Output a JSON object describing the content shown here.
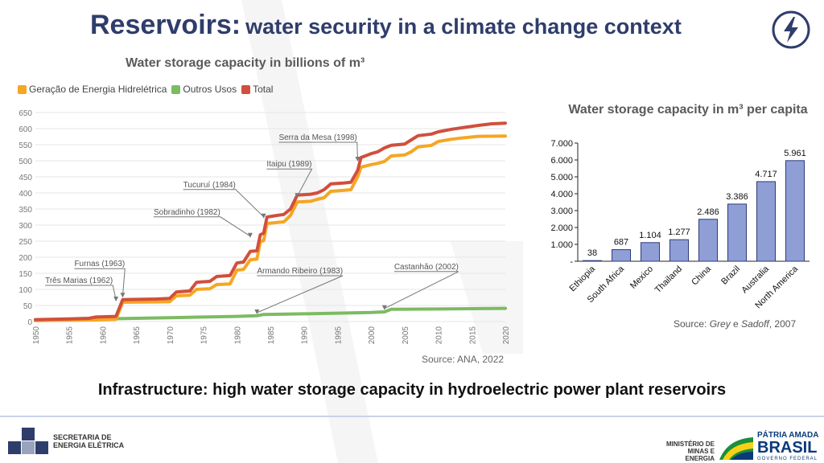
{
  "header": {
    "title_main": "Reservoirs:",
    "title_rest": "water security in a climate change context",
    "subtitle": "Water storage capacity in billions of m³",
    "icon": "lightning-bolt-icon"
  },
  "line_chart": {
    "legend": [
      {
        "label": "Geração de Energia Hidrelétrica",
        "color": "#f5a623"
      },
      {
        "label": "Outros Usos",
        "color": "#7dbb63"
      },
      {
        "label": "Total",
        "color": "#d14f3c"
      }
    ],
    "source": "Source: ANA, 2022"
  },
  "bar_chart": {
    "title": "Water storage capacity in m³ per capita",
    "source_prefix": "Source: ",
    "source_author1": "Grey",
    "source_sep": " e ",
    "source_author2": "Sadoff",
    "source_year": ", 2007"
  },
  "footer": {
    "caption": "Infrastructure: high water storage capacity in hydroelectric power plant reservoirs",
    "logo_left_line1": "SECRETARIA DE",
    "logo_left_line2": "ENERGIA ELÉTRICA",
    "mme_line1": "MINISTÉRIO DE",
    "mme_line2": "MINAS E ENERGIA",
    "brasil_line1": "PÁTRIA AMADA",
    "brasil_line2": "BRASIL",
    "brasil_line3": "GOVERNO FEDERAL"
  },
  "chart_data": [
    {
      "type": "line",
      "title": "Water storage capacity in billions of m³",
      "xlabel": "",
      "ylabel": "",
      "xlim": [
        1950,
        2020
      ],
      "ylim": [
        0,
        650
      ],
      "x_ticks": [
        1950,
        1955,
        1960,
        1965,
        1970,
        1975,
        1980,
        1985,
        1990,
        1995,
        2000,
        2005,
        2010,
        2015,
        2020
      ],
      "y_ticks": [
        0,
        50,
        100,
        150,
        200,
        250,
        300,
        350,
        400,
        450,
        500,
        550,
        600,
        650
      ],
      "grid": "horizontal",
      "legend_position": "top-left",
      "series": [
        {
          "name": "Geração de Energia Hidrelétrica",
          "color": "#f5a623",
          "points": [
            [
              1950,
              3
            ],
            [
              1955,
              4
            ],
            [
              1959,
              5
            ],
            [
              1962,
              7
            ],
            [
              1963,
              60
            ],
            [
              1968,
              61
            ],
            [
              1970,
              62
            ],
            [
              1971,
              80
            ],
            [
              1973,
              82
            ],
            [
              1974,
              100
            ],
            [
              1976,
              102
            ],
            [
              1977,
              115
            ],
            [
              1979,
              117
            ],
            [
              1980,
              160
            ],
            [
              1981,
              162
            ],
            [
              1982,
              192
            ],
            [
              1983,
              194
            ],
            [
              1983.5,
              248
            ],
            [
              1984,
              252
            ],
            [
              1984.5,
              305
            ],
            [
              1986,
              308
            ],
            [
              1987,
              310
            ],
            [
              1988,
              330
            ],
            [
              1989,
              372
            ],
            [
              1991,
              374
            ],
            [
              1992,
              380
            ],
            [
              1993,
              385
            ],
            [
              1994,
              405
            ],
            [
              1996,
              408
            ],
            [
              1997,
              410
            ],
            [
              1998,
              450
            ],
            [
              1998.5,
              480
            ],
            [
              2000,
              488
            ],
            [
              2001,
              492
            ],
            [
              2002,
              498
            ],
            [
              2003,
              515
            ],
            [
              2005,
              518
            ],
            [
              2006,
              528
            ],
            [
              2007,
              543
            ],
            [
              2009,
              548
            ],
            [
              2010,
              560
            ],
            [
              2012,
              567
            ],
            [
              2014,
              572
            ],
            [
              2016,
              576
            ],
            [
              2020,
              577
            ]
          ]
        },
        {
          "name": "Outros Usos",
          "color": "#7dbb63",
          "points": [
            [
              1950,
              3
            ],
            [
              1960,
              8
            ],
            [
              1965,
              10
            ],
            [
              1970,
              12
            ],
            [
              1975,
              14
            ],
            [
              1980,
              16
            ],
            [
              1983,
              18
            ],
            [
              1984,
              22
            ],
            [
              1990,
              24
            ],
            [
              1995,
              26
            ],
            [
              2000,
              28
            ],
            [
              2002,
              30
            ],
            [
              2003,
              38
            ],
            [
              2010,
              39
            ],
            [
              2015,
              40
            ],
            [
              2020,
              41
            ]
          ]
        },
        {
          "name": "Total",
          "color": "#d14f3c",
          "points": [
            [
              1950,
              6
            ],
            [
              1955,
              8
            ],
            [
              1958,
              10
            ],
            [
              1959,
              14
            ],
            [
              1962,
              16
            ],
            [
              1963,
              68
            ],
            [
              1968,
              70
            ],
            [
              1970,
              72
            ],
            [
              1971,
              92
            ],
            [
              1973,
              95
            ],
            [
              1974,
              122
            ],
            [
              1976,
              125
            ],
            [
              1977,
              140
            ],
            [
              1979,
              143
            ],
            [
              1980,
              182
            ],
            [
              1981,
              185
            ],
            [
              1982,
              218
            ],
            [
              1983,
              220
            ],
            [
              1983.5,
              270
            ],
            [
              1984,
              275
            ],
            [
              1984.5,
              325
            ],
            [
              1986,
              330
            ],
            [
              1987,
              333
            ],
            [
              1988,
              350
            ],
            [
              1989,
              393
            ],
            [
              1991,
              396
            ],
            [
              1992,
              400
            ],
            [
              1993,
              410
            ],
            [
              1994,
              428
            ],
            [
              1996,
              431
            ],
            [
              1997,
              433
            ],
            [
              1998,
              470
            ],
            [
              1998.5,
              510
            ],
            [
              2000,
              522
            ],
            [
              2001,
              528
            ],
            [
              2002,
              540
            ],
            [
              2003,
              548
            ],
            [
              2005,
              552
            ],
            [
              2006,
              565
            ],
            [
              2007,
              578
            ],
            [
              2009,
              583
            ],
            [
              2010,
              590
            ],
            [
              2012,
              598
            ],
            [
              2014,
              604
            ],
            [
              2016,
              610
            ],
            [
              2018,
              615
            ],
            [
              2020,
              617
            ]
          ]
        }
      ],
      "annotations": [
        {
          "label": "Três Marias (1962)",
          "x": 1962,
          "y": 60
        },
        {
          "label": "Furnas (1963)",
          "x": 1963,
          "y": 72
        },
        {
          "label": "Sobradinho (1982)",
          "x": 1982,
          "y": 258
        },
        {
          "label": "Tucuruí (1984)",
          "x": 1984,
          "y": 318
        },
        {
          "label": "Itaipu (1989)",
          "x": 1989,
          "y": 382
        },
        {
          "label": "Serra da Mesa (1998)",
          "x": 1998,
          "y": 495
        },
        {
          "label": "Armando Ribeiro (1983)",
          "x": 1983,
          "y": 20
        },
        {
          "label": "Castanhão (2002)",
          "x": 2002,
          "y": 33
        }
      ]
    },
    {
      "type": "bar",
      "title": "Water storage capacity in m³ per capita",
      "xlabel": "",
      "ylabel": "",
      "categories": [
        "Ethiopia",
        "South Africa",
        "Mexico",
        "Thailand",
        "China",
        "Brazil",
        "Australia",
        "North America"
      ],
      "values": [
        38,
        687,
        1104,
        1277,
        2486,
        3386,
        4717,
        5961
      ],
      "value_labels": [
        "38",
        "687",
        "1.104",
        "1.277",
        "2.486",
        "3.386",
        "4.717",
        "5.961"
      ],
      "y_ticks": [
        "-",
        "1.000",
        "2.000",
        "3.000",
        "4.000",
        "5.000",
        "6.000",
        "7.000"
      ],
      "ylim": [
        0,
        7000
      ],
      "color": "#8f9fd6",
      "grid": false
    }
  ]
}
